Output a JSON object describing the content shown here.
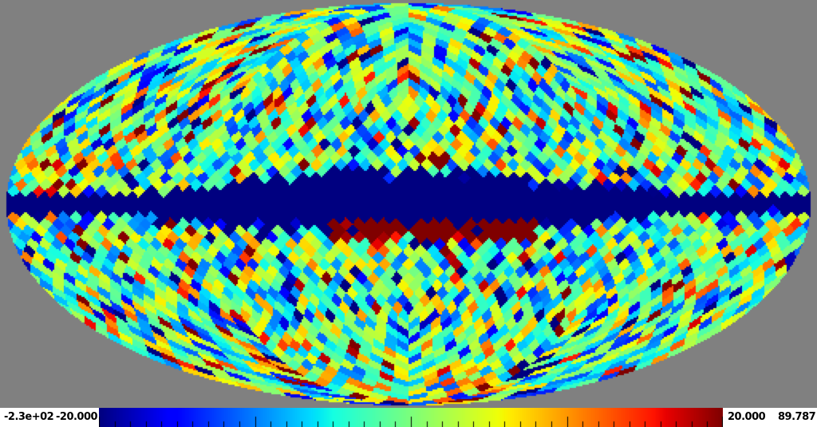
{
  "figure": {
    "background_color": "#808080",
    "margin_color": "#ffffff",
    "tick_color": "#000000",
    "label_color": "#000000"
  },
  "chart_data": {
    "type": "heatmap",
    "projection": "mollweide",
    "pixelization": "healpix",
    "nside": 16,
    "coordinate_grid": "off",
    "title": "",
    "colormap": {
      "name": "jet",
      "r": [
        [
          0,
          0
        ],
        [
          0.35,
          0
        ],
        [
          0.66,
          1
        ],
        [
          0.89,
          1
        ],
        [
          1,
          0.5
        ]
      ],
      "g": [
        [
          0,
          0
        ],
        [
          0.125,
          0
        ],
        [
          0.375,
          1
        ],
        [
          0.64,
          1
        ],
        [
          0.91,
          0
        ],
        [
          1,
          0
        ]
      ],
      "b": [
        [
          0,
          0.5
        ],
        [
          0.11,
          1
        ],
        [
          0.34,
          1
        ],
        [
          0.65,
          0
        ],
        [
          1,
          0
        ]
      ]
    },
    "scale": {
      "vmin": -20,
      "vmax": 20,
      "data_min": -230,
      "data_max": 89.787
    },
    "colorbar": {
      "position": "bottom",
      "labels": {
        "data_min": "-2.3e+02",
        "vmin": "-20.000",
        "vmax": "20.000",
        "data_max": "89.787"
      },
      "ticks": {
        "count": 41,
        "major_every": 10,
        "minor_len": 7,
        "major_len": 13
      }
    },
    "generator": {
      "seed": 73,
      "render_width": 512,
      "render_height": 256,
      "upscale": 2,
      "noise": {
        "mean": -1.5,
        "std": 8
      },
      "outlier_probs": {
        "navy": 0.018,
        "dark_red": 0.015,
        "orange": 0.017
      },
      "band": {
        "center_lat_deg": 2,
        "sigma_base_deg": 2.5,
        "sigma_peak_deg": 4.5,
        "lon_scale_deg": 85,
        "profile_power": 4,
        "navy_value": -230,
        "fringe_value_base": -13,
        "fringe_value_spread": -7
      },
      "core": {
        "lat_min_deg": -11.5,
        "lat_max_deg": -4,
        "lon_min_deg": -35,
        "lon_max_deg": 58,
        "value": 89,
        "fill_fraction": 0.82,
        "orange_fraction": 0.1,
        "orange_value_base": 15,
        "orange_value_spread": 4
      }
    }
  }
}
